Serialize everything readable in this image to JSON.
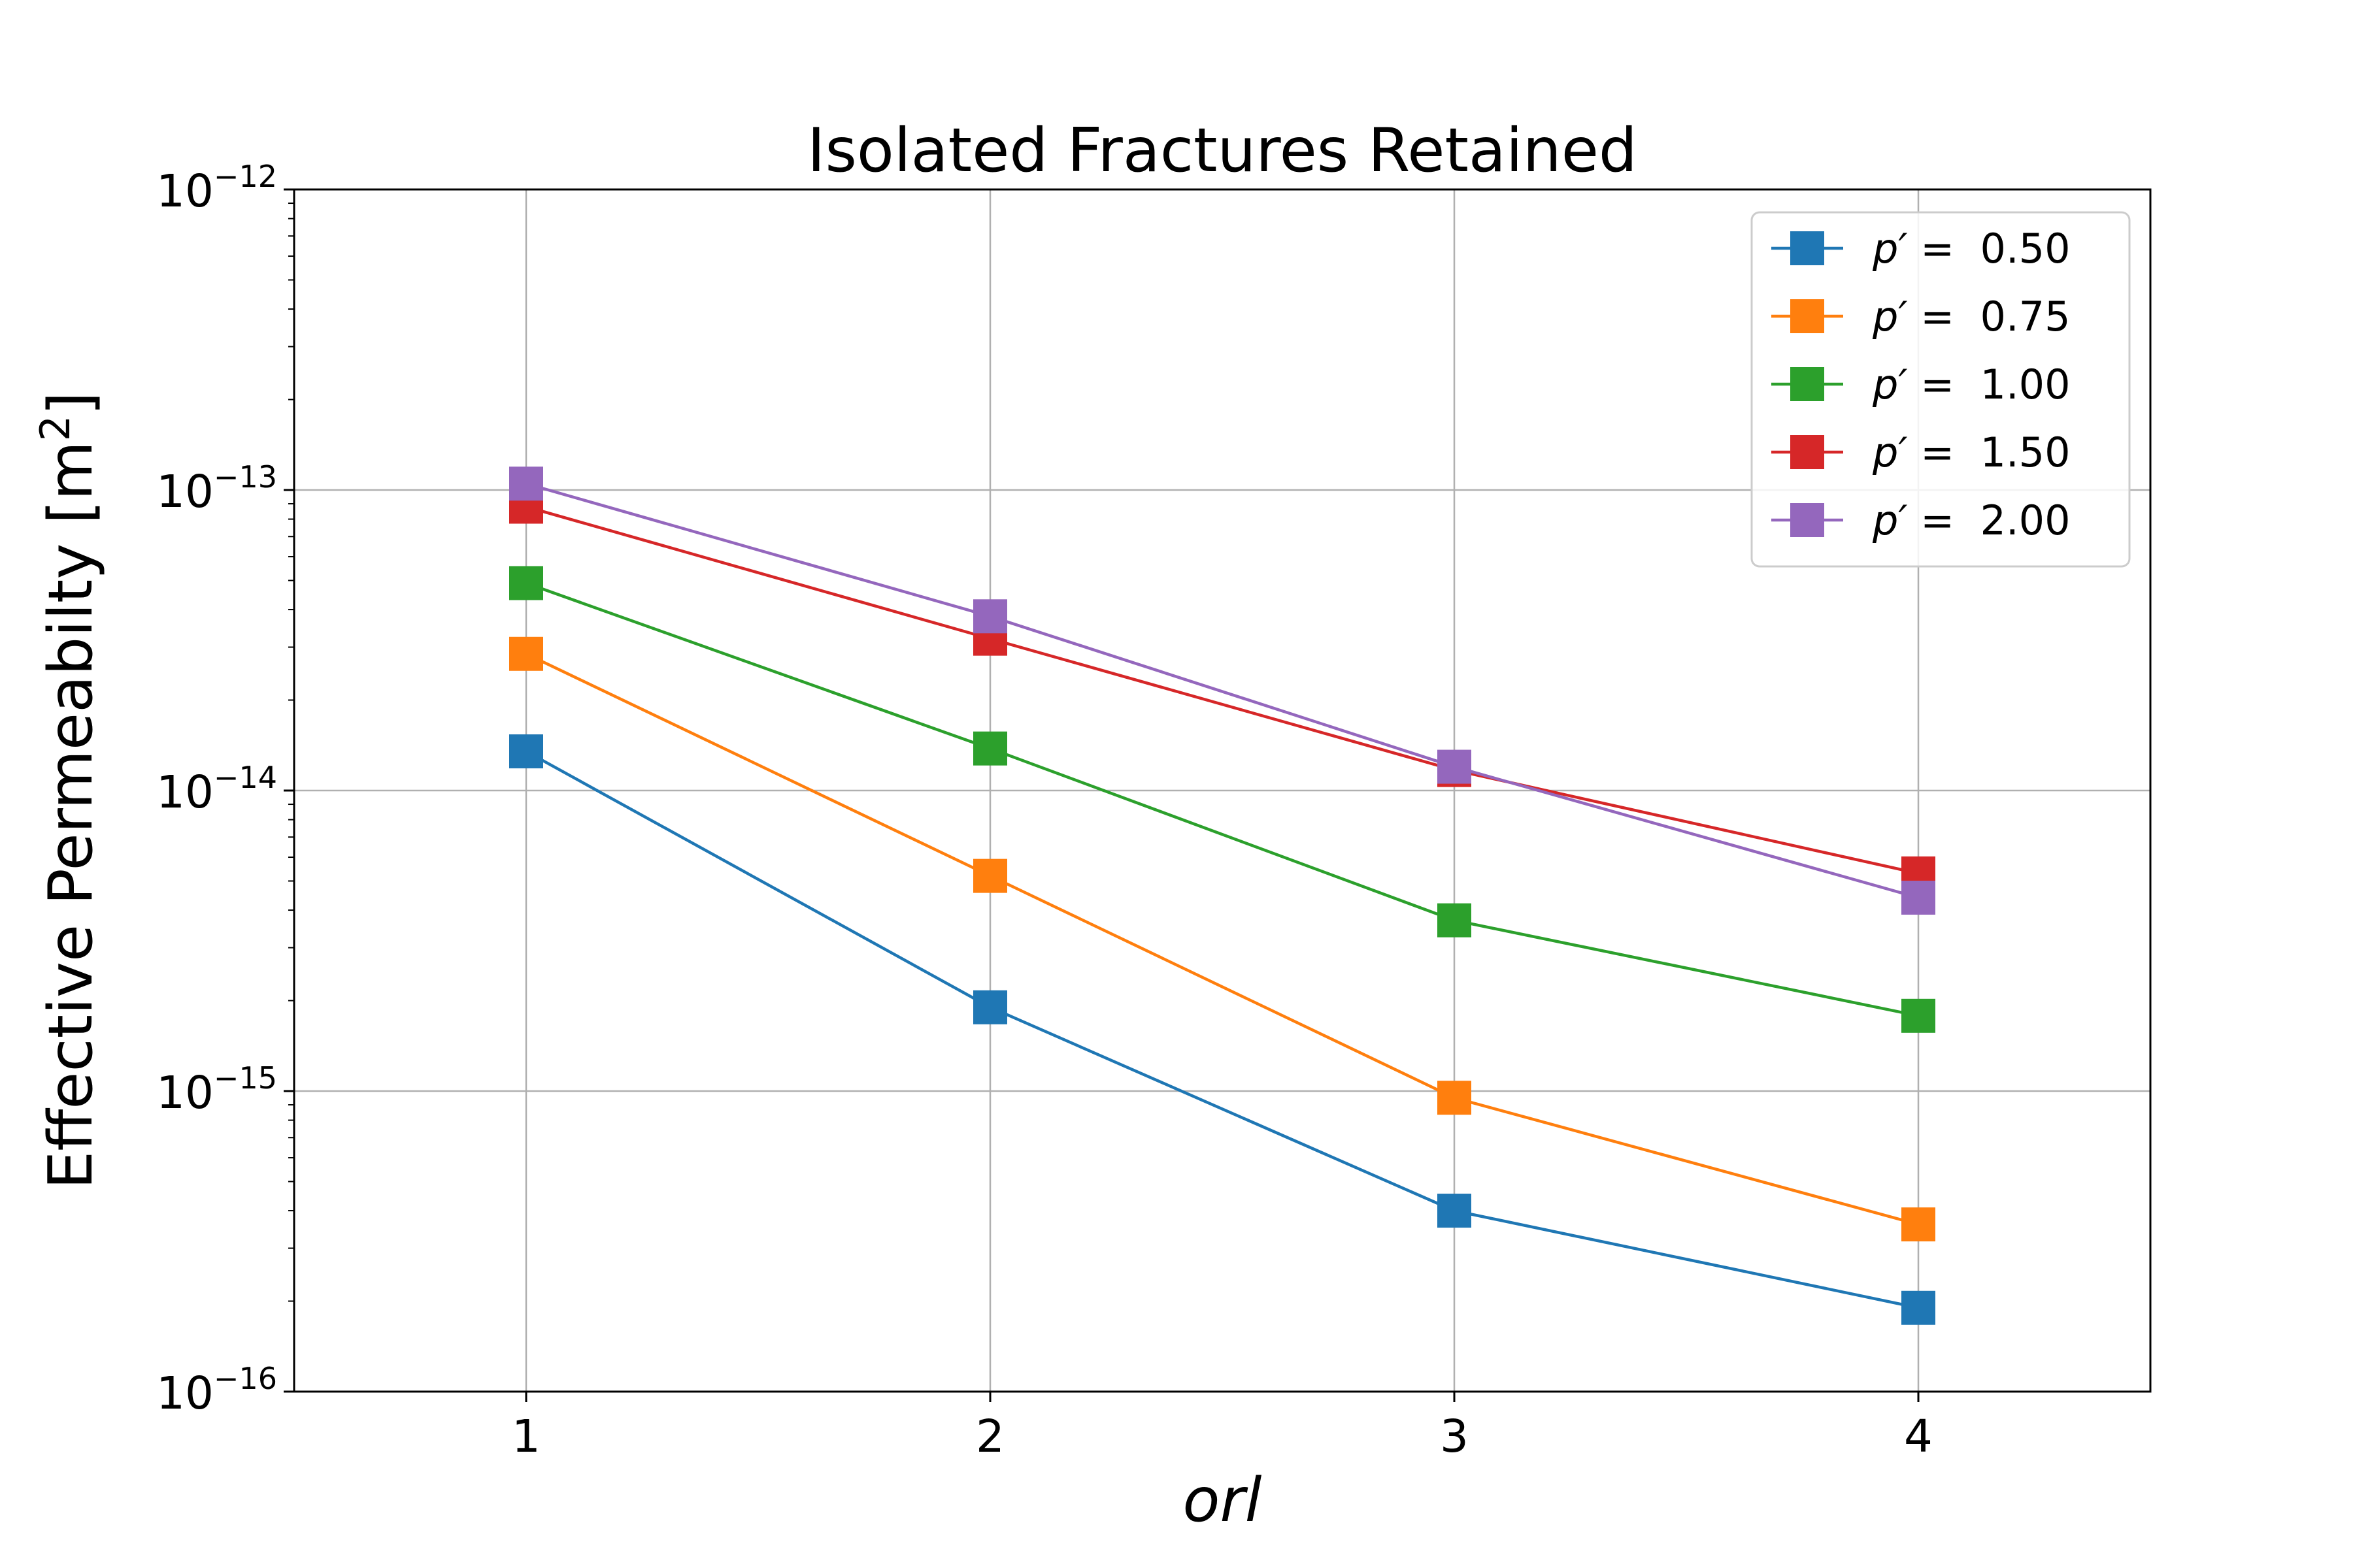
{
  "chart_data": {
    "type": "line",
    "title": "Isolated Fractures Retained",
    "xlabel": "orl",
    "ylabel": "Effective Permeabilty [m",
    "ylabel_sup": "2",
    "ylabel_suffix": "]",
    "yscale": "log",
    "ylim": [
      1e-16,
      1e-12
    ],
    "xlim": [
      0.5,
      4.5
    ],
    "x": [
      1,
      2,
      3,
      4
    ],
    "x_tick_labels": [
      "1",
      "2",
      "3",
      "4"
    ],
    "y_tick_labels": [
      {
        "base": "10",
        "exp": "−16"
      },
      {
        "base": "10",
        "exp": "−15"
      },
      {
        "base": "10",
        "exp": "−14"
      },
      {
        "base": "10",
        "exp": "−13"
      },
      {
        "base": "10",
        "exp": "−12"
      }
    ],
    "grid": true,
    "legend_position": "top-right",
    "marker": "square",
    "series": [
      {
        "name": "p′ =  0.50",
        "legend_prefix": "p′",
        "legend_value": " =  0.50",
        "color": "#1f77b4",
        "values": [
          1.35e-14,
          1.9e-15,
          4e-16,
          1.9e-16
        ]
      },
      {
        "name": "p′ =  0.75",
        "legend_prefix": "p′",
        "legend_value": " =  0.75",
        "color": "#ff7f0e",
        "values": [
          2.85e-14,
          5.2e-15,
          9.5e-16,
          3.6e-16
        ]
      },
      {
        "name": "p′ =  1.00",
        "legend_prefix": "p′",
        "legend_value": " =  1.00",
        "color": "#2ca02c",
        "values": [
          4.9e-14,
          1.38e-14,
          3.7e-15,
          1.78e-15
        ]
      },
      {
        "name": "p′ =  1.50",
        "legend_prefix": "p′",
        "legend_value": " =  1.50",
        "color": "#d62728",
        "values": [
          8.8e-14,
          3.2e-14,
          1.17e-14,
          5.3e-15
        ]
      },
      {
        "name": "p′ =  2.00",
        "legend_prefix": "p′",
        "legend_value": " =  2.00",
        "color": "#9467bd",
        "values": [
          1.05e-13,
          3.8e-14,
          1.2e-14,
          4.4e-15
        ]
      }
    ]
  }
}
